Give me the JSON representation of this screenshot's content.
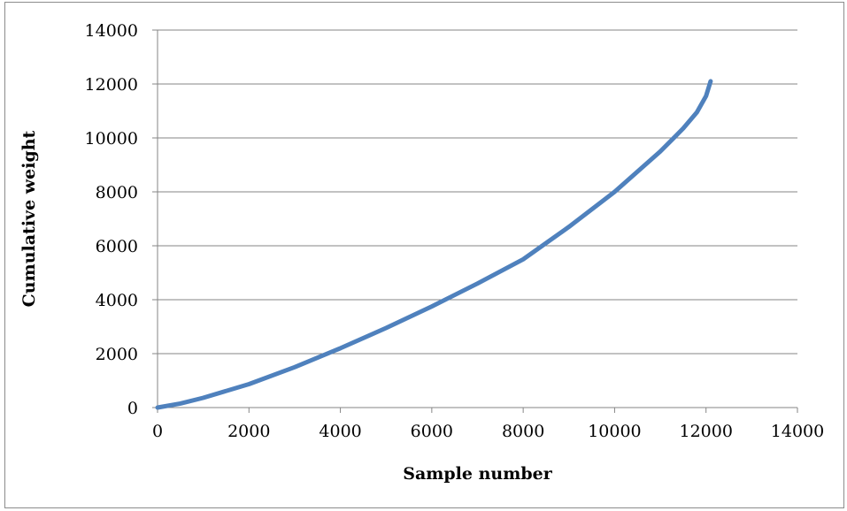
{
  "chart_data": {
    "type": "line",
    "title": "",
    "xlabel": "Sample number",
    "ylabel": "Cumulative weight",
    "xlim": [
      0,
      14000
    ],
    "ylim": [
      0,
      14000
    ],
    "x_ticks": [
      0,
      2000,
      4000,
      6000,
      8000,
      10000,
      12000,
      14000
    ],
    "y_ticks": [
      0,
      2000,
      4000,
      6000,
      8000,
      10000,
      12000,
      14000
    ],
    "x_tick_labels": [
      "0",
      "2000",
      "4000",
      "6000",
      "8000",
      "10000",
      "12000",
      "14000"
    ],
    "y_tick_labels": [
      "0",
      "2000",
      "4000",
      "6000",
      "8000",
      "10000",
      "12000",
      "14000"
    ],
    "grid": "horizontal major gridlines",
    "legend": "none",
    "series": [
      {
        "color": "#4f81bd",
        "x": [
          0,
          500,
          1000,
          2000,
          3000,
          4000,
          5000,
          6000,
          7000,
          8000,
          9000,
          10000,
          11000,
          11500,
          11800,
          12000,
          12100
        ],
        "y": [
          0,
          150,
          360,
          870,
          1500,
          2200,
          2950,
          3750,
          4600,
          5500,
          6700,
          8000,
          9500,
          10350,
          10950,
          11550,
          12100
        ]
      }
    ]
  }
}
